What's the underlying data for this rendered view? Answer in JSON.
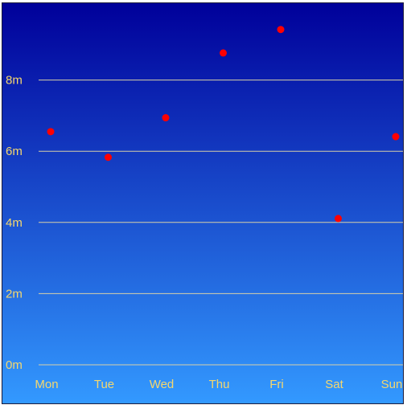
{
  "chart_data": {
    "type": "scatter",
    "title": "",
    "xlabel": "",
    "ylabel": "",
    "categories": [
      "Mon",
      "Tue",
      "Wed",
      "Thu",
      "Fri",
      "Sat",
      "Sun"
    ],
    "y_unit": "m",
    "ylim": [
      0,
      10.2
    ],
    "yticks": [
      0,
      2,
      4,
      6,
      8
    ],
    "ytick_labels": [
      "0m",
      "2m",
      "4m",
      "6m",
      "8m"
    ],
    "grid": true,
    "legend": "none",
    "series": [
      {
        "values": [
          6.55,
          5.83,
          6.94,
          8.76,
          9.42,
          4.11,
          6.41
        ]
      }
    ],
    "colors": {
      "background_top": "#00009a",
      "background_bottom": "#3399ff",
      "gridline": "#d8d0a8",
      "tick_label": "#f5d76e",
      "marker": "#ff0000"
    }
  }
}
